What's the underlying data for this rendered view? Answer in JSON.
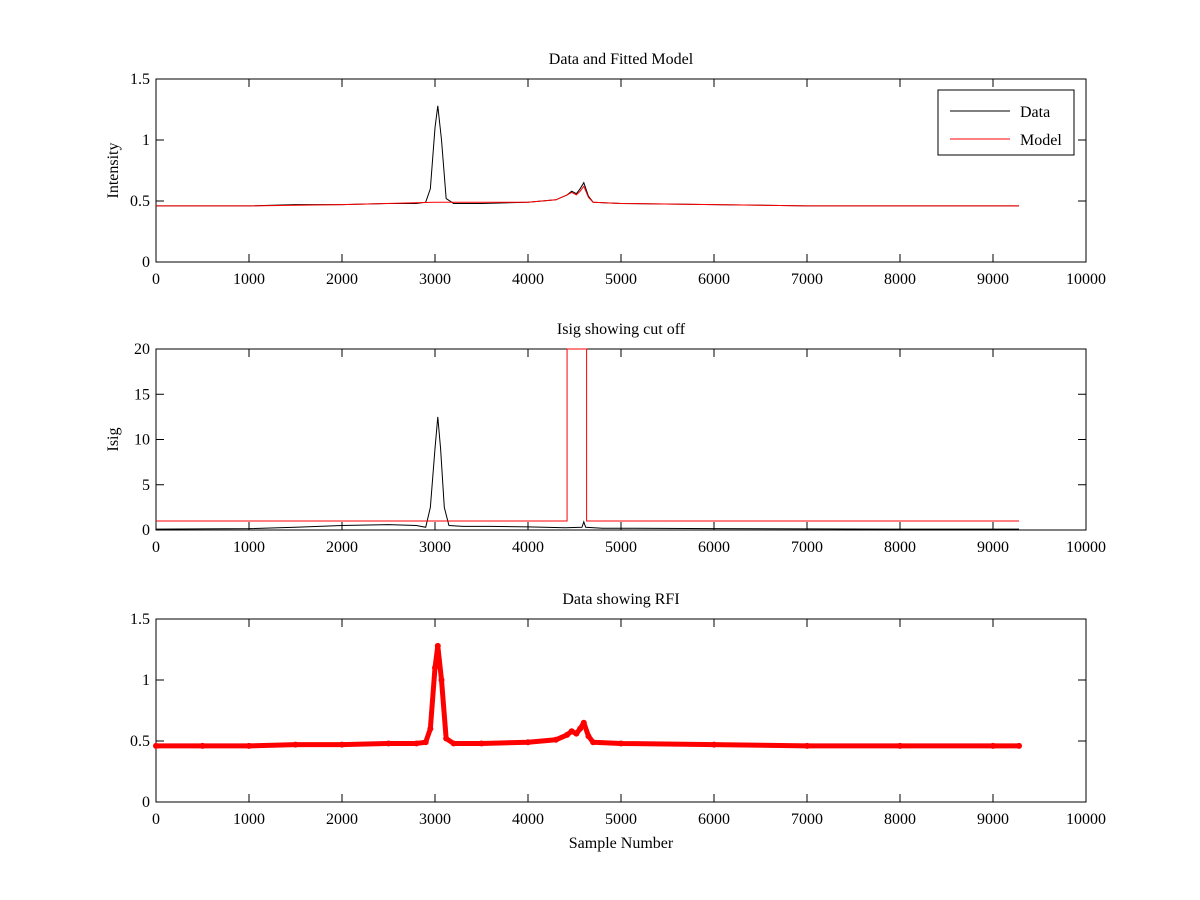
{
  "figure": {
    "background": "#ffffff",
    "colors": {
      "axis": "#000000",
      "data": "#000000",
      "model": "#ff0000",
      "rfi": "#ff0000"
    }
  },
  "chart_data": [
    {
      "type": "line",
      "title": "Data and Fitted Model",
      "xlabel": "",
      "ylabel": "Intensity",
      "xlim": [
        0,
        10000
      ],
      "ylim": [
        0,
        1.5
      ],
      "xticks": [
        0,
        1000,
        2000,
        3000,
        4000,
        5000,
        6000,
        7000,
        8000,
        9000,
        10000
      ],
      "yticks": [
        0,
        0.5,
        1,
        1.5
      ],
      "xtick_labels": [
        "0",
        "1000",
        "2000",
        "3000",
        "4000",
        "5000",
        "6000",
        "7000",
        "8000",
        "9000",
        "10000"
      ],
      "ytick_labels": [
        "0",
        "0.5",
        "1",
        "1.5"
      ],
      "grid": false,
      "legend": {
        "position": "top-right",
        "entries": [
          "Data",
          "Model"
        ]
      },
      "series": [
        {
          "name": "Data",
          "color": "#000000",
          "x": [
            0,
            500,
            1000,
            1500,
            2000,
            2500,
            2800,
            2900,
            2950,
            3000,
            3030,
            3070,
            3120,
            3200,
            3500,
            4000,
            4300,
            4420,
            4470,
            4520,
            4560,
            4600,
            4650,
            4700,
            5000,
            6000,
            7000,
            8000,
            9000,
            9280
          ],
          "y": [
            0.46,
            0.46,
            0.46,
            0.47,
            0.47,
            0.48,
            0.48,
            0.49,
            0.6,
            1.1,
            1.28,
            1.0,
            0.52,
            0.48,
            0.48,
            0.49,
            0.51,
            0.55,
            0.58,
            0.56,
            0.6,
            0.65,
            0.54,
            0.49,
            0.48,
            0.47,
            0.46,
            0.46,
            0.46,
            0.46
          ]
        },
        {
          "name": "Model",
          "color": "#ff0000",
          "x": [
            0,
            1000,
            2000,
            3000,
            4000,
            4300,
            4420,
            4470,
            4520,
            4560,
            4600,
            4650,
            4700,
            5000,
            6000,
            7000,
            8000,
            9000,
            9280
          ],
          "y": [
            0.46,
            0.46,
            0.47,
            0.49,
            0.49,
            0.51,
            0.55,
            0.57,
            0.55,
            0.58,
            0.62,
            0.53,
            0.49,
            0.48,
            0.47,
            0.46,
            0.46,
            0.46,
            0.46
          ]
        }
      ]
    },
    {
      "type": "line",
      "title": "Isig showing cut off",
      "xlabel": "",
      "ylabel": "Isig",
      "xlim": [
        0,
        10000
      ],
      "ylim": [
        0,
        20
      ],
      "xticks": [
        0,
        1000,
        2000,
        3000,
        4000,
        5000,
        6000,
        7000,
        8000,
        9000,
        10000
      ],
      "yticks": [
        0,
        5,
        10,
        15,
        20
      ],
      "xtick_labels": [
        "0",
        "1000",
        "2000",
        "3000",
        "4000",
        "5000",
        "6000",
        "7000",
        "8000",
        "9000",
        "10000"
      ],
      "ytick_labels": [
        "0",
        "5",
        "10",
        "15",
        "20"
      ],
      "grid": false,
      "series": [
        {
          "color": "#000000",
          "x": [
            0,
            1000,
            1500,
            2000,
            2500,
            2800,
            2900,
            2950,
            3000,
            3030,
            3060,
            3100,
            3150,
            3300,
            3600,
            4000,
            4400,
            4580,
            4600,
            4620,
            4800,
            5000,
            6000,
            7000,
            8000,
            9000,
            9280
          ],
          "y": [
            0.1,
            0.15,
            0.3,
            0.5,
            0.6,
            0.5,
            0.3,
            2.5,
            9.0,
            12.5,
            9.0,
            2.5,
            0.5,
            0.4,
            0.4,
            0.35,
            0.25,
            0.3,
            0.9,
            0.3,
            0.2,
            0.2,
            0.15,
            0.12,
            0.1,
            0.1,
            0.1
          ]
        },
        {
          "color": "#ff0000",
          "x": [
            0,
            4420,
            4420,
            4630,
            4630,
            9280
          ],
          "y": [
            1,
            1,
            20,
            20,
            1,
            1
          ]
        }
      ]
    },
    {
      "type": "scatter",
      "title": "Data showing RFI",
      "xlabel": "Sample Number",
      "ylabel": "",
      "xlim": [
        0,
        10000
      ],
      "ylim": [
        0,
        1.5
      ],
      "xticks": [
        0,
        1000,
        2000,
        3000,
        4000,
        5000,
        6000,
        7000,
        8000,
        9000,
        10000
      ],
      "yticks": [
        0,
        0.5,
        1,
        1.5
      ],
      "xtick_labels": [
        "0",
        "1000",
        "2000",
        "3000",
        "4000",
        "5000",
        "6000",
        "7000",
        "8000",
        "9000",
        "10000"
      ],
      "ytick_labels": [
        "0",
        "0.5",
        "1",
        "1.5"
      ],
      "grid": false,
      "series": [
        {
          "color": "#ff0000",
          "x": [
            0,
            500,
            1000,
            1500,
            2000,
            2500,
            2800,
            2900,
            2950,
            3000,
            3030,
            3070,
            3120,
            3200,
            3500,
            4000,
            4300,
            4420,
            4470,
            4520,
            4560,
            4600,
            4650,
            4700,
            5000,
            6000,
            7000,
            8000,
            9000,
            9280
          ],
          "y": [
            0.46,
            0.46,
            0.46,
            0.47,
            0.47,
            0.48,
            0.48,
            0.49,
            0.6,
            1.1,
            1.28,
            1.0,
            0.52,
            0.48,
            0.48,
            0.49,
            0.51,
            0.55,
            0.58,
            0.56,
            0.6,
            0.65,
            0.54,
            0.49,
            0.48,
            0.47,
            0.46,
            0.46,
            0.46,
            0.46
          ]
        }
      ]
    }
  ]
}
